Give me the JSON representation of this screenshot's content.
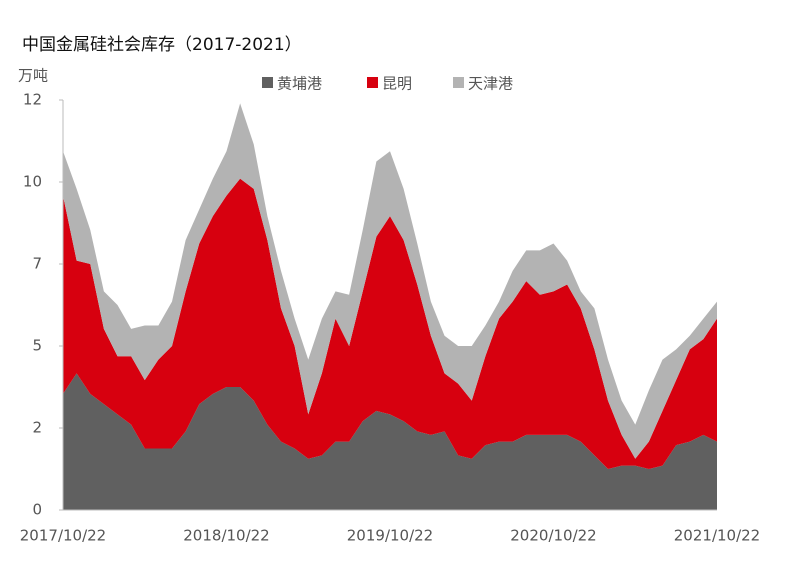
{
  "chart_data": {
    "type": "stacked-area",
    "title": "中国金属硅社会库存（2017-2021）",
    "y_label": "万吨",
    "categories": [
      "2017/10/22",
      null,
      null,
      null,
      null,
      null,
      null,
      null,
      null,
      null,
      null,
      null,
      "2018/10/22",
      null,
      null,
      null,
      null,
      null,
      null,
      null,
      null,
      null,
      null,
      null,
      "2019/10/22",
      null,
      null,
      null,
      null,
      null,
      null,
      null,
      null,
      null,
      null,
      null,
      "2020/10/22",
      null,
      null,
      null,
      null,
      null,
      null,
      null,
      null,
      null,
      null,
      null,
      "2021/10/22"
    ],
    "ylim": [
      0,
      12
    ],
    "yticks": [
      0,
      {
        "value": 2.4,
        "label": "2"
      },
      {
        "value": 4.8,
        "label": "5"
      },
      {
        "value": 7.2,
        "label": "7"
      },
      {
        "value": 9.6,
        "label": "10"
      },
      12
    ],
    "series": [
      {
        "name": "黄埔港",
        "color": "#606060",
        "values": [
          3.4,
          4.0,
          3.4,
          3.1,
          2.8,
          2.5,
          1.8,
          1.8,
          1.8,
          2.3,
          3.1,
          3.4,
          3.6,
          3.6,
          3.2,
          2.5,
          2.0,
          1.8,
          1.5,
          1.6,
          2.0,
          2.0,
          2.6,
          2.9,
          2.8,
          2.6,
          2.3,
          2.2,
          2.3,
          1.6,
          1.5,
          1.9,
          2.0,
          2.0,
          2.2,
          2.2,
          2.2,
          2.2,
          2.0,
          1.6,
          1.2,
          1.3,
          1.3,
          1.2,
          1.3,
          1.9,
          2.0,
          2.2,
          2.0
        ]
      },
      {
        "name": "昆明",
        "color": "#d7000f",
        "values": [
          5.8,
          3.3,
          3.8,
          2.2,
          1.7,
          2.0,
          2.0,
          2.6,
          3.0,
          4.1,
          4.7,
          5.2,
          5.6,
          6.1,
          6.2,
          5.4,
          3.9,
          3.0,
          1.3,
          2.4,
          3.6,
          2.8,
          3.8,
          5.1,
          5.8,
          5.3,
          4.3,
          2.9,
          1.7,
          2.1,
          1.7,
          2.6,
          3.6,
          4.1,
          4.5,
          4.1,
          4.2,
          4.4,
          3.9,
          3.1,
          2.0,
          0.9,
          0.2,
          0.8,
          1.6,
          1.9,
          2.7,
          2.8,
          3.6
        ]
      },
      {
        "name": "天津港",
        "color": "#b3b3b3",
        "values": [
          1.3,
          2.1,
          1.0,
          1.1,
          1.5,
          0.8,
          1.6,
          1.0,
          1.3,
          1.5,
          1.0,
          1.1,
          1.3,
          2.2,
          1.3,
          0.7,
          1.1,
          0.8,
          1.6,
          1.6,
          0.8,
          1.5,
          1.8,
          2.2,
          1.9,
          1.5,
          1.2,
          1.0,
          1.1,
          1.1,
          1.6,
          0.9,
          0.5,
          0.9,
          0.9,
          1.3,
          1.4,
          0.7,
          0.5,
          1.2,
          1.2,
          1.0,
          1.0,
          1.5,
          1.5,
          0.9,
          0.4,
          0.6,
          0.5
        ]
      }
    ]
  }
}
